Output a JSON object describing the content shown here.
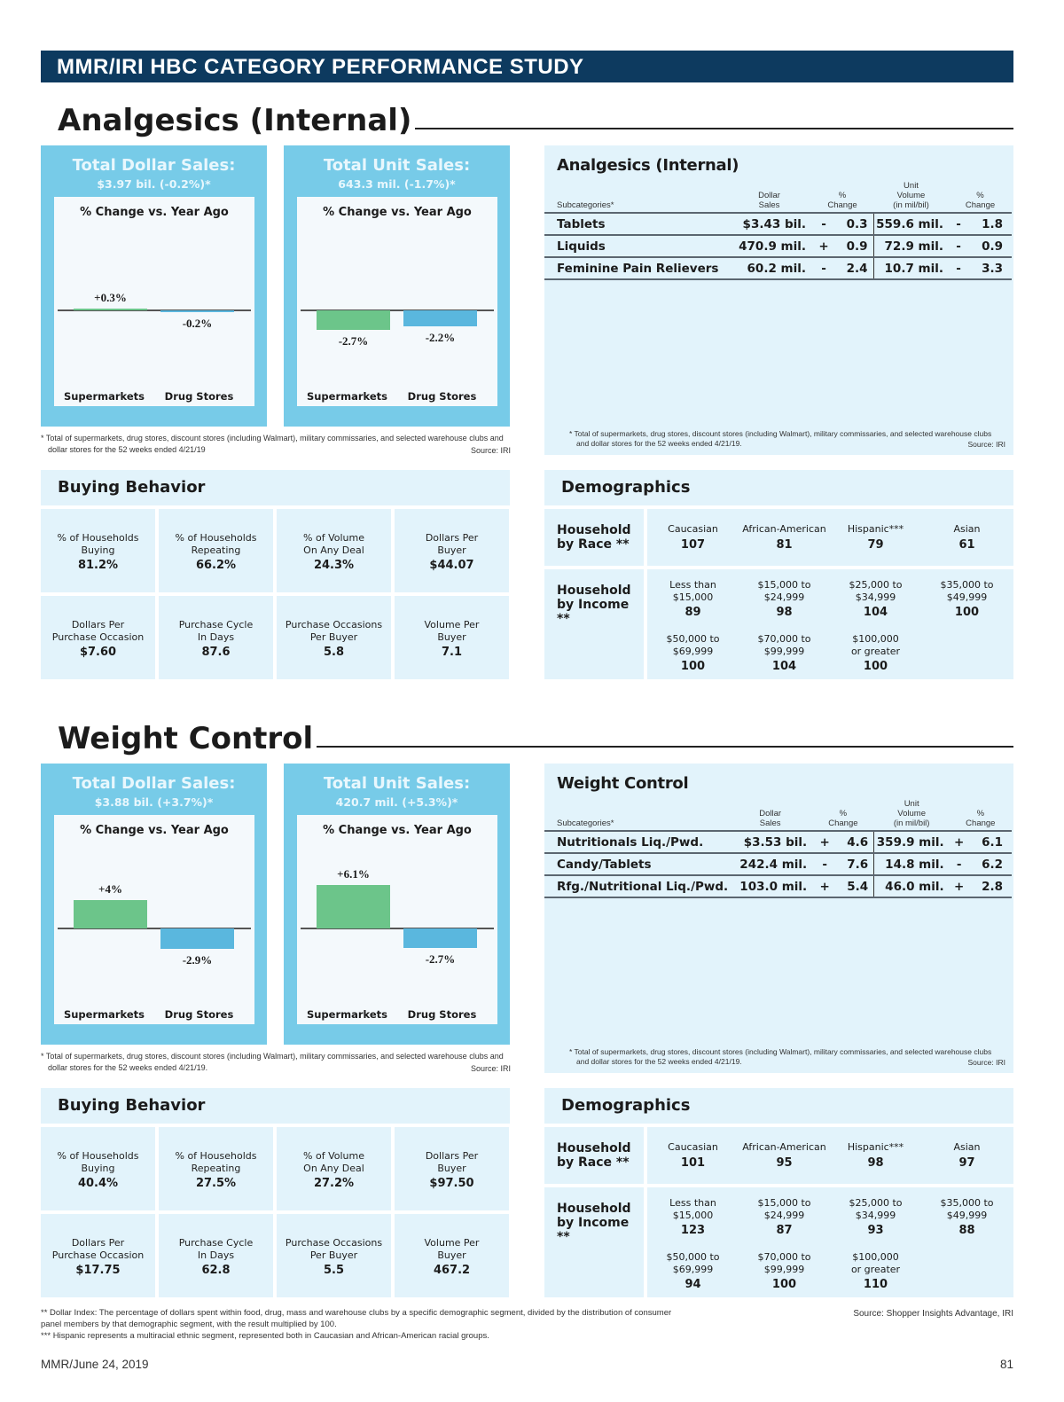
{
  "header": {
    "title": "MMR/IRI HBC CATEGORY PERFORMANCE STUDY"
  },
  "colors": {
    "header": "#0d3a5f",
    "sales_box": "#77cbe8",
    "panel": "#e2f3fb",
    "supermarkets_bar": "#6cc58a",
    "drug_bar": "#5ab7de"
  },
  "sections": [
    {
      "title": "Analgesics (Internal)",
      "dollar": {
        "title": "Total Dollar Sales:",
        "value": "$3.97 bil. (-0.2%)*",
        "chart_title": "% Change vs. Year Ago",
        "bars": [
          {
            "category": "Supermarkets",
            "value": 0.3,
            "label": "+0.3%"
          },
          {
            "category": "Drug Stores",
            "value": -0.2,
            "label": "-0.2%"
          }
        ]
      },
      "unit": {
        "title": "Total Unit Sales:",
        "value": "643.3 mil. (-1.7%)*",
        "chart_title": "% Change vs. Year Ago",
        "bars": [
          {
            "category": "Supermarkets",
            "value": -2.7,
            "label": "-2.7%"
          },
          {
            "category": "Drug Stores",
            "value": -2.2,
            "label": "-2.2%"
          }
        ]
      },
      "footnote": "* Total of supermarkets, drug stores, discount stores (including Walmart), military commissaries, and selected warehouse clubs and dollar stores for the 52 weeks ended 4/21/19",
      "source": "Source: IRI",
      "table": {
        "title": "Analgesics (Internal)",
        "headers": [
          "Subcategories*",
          "Dollar\nSales",
          "%\nChange",
          "Unit\nVolume\n(in mil/bil)",
          "%\nChange"
        ],
        "rows": [
          {
            "name": "Tablets",
            "dollar": "$3.43 bil.",
            "s1": "-",
            "c1": "0.3",
            "unit": "559.6 mil.",
            "s2": "-",
            "c2": "1.8"
          },
          {
            "name": "Liquids",
            "dollar": "470.9 mil.",
            "s1": "+",
            "c1": "0.9",
            "unit": "72.9 mil.",
            "s2": "-",
            "c2": "0.9"
          },
          {
            "name": "Feminine Pain Relievers",
            "dollar": "60.2 mil.",
            "s1": "-",
            "c1": "2.4",
            "unit": "10.7 mil.",
            "s2": "-",
            "c2": "3.3"
          }
        ],
        "footnote": "* Total of supermarkets, drug stores, discount stores (including Walmart), military commissaries, and selected warehouse clubs and dollar stores for the 52 weeks ended 4/21/19.",
        "source": "Source: IRI"
      },
      "buying": {
        "title": "Buying Behavior",
        "metrics": [
          {
            "label": "% of Households\nBuying",
            "value": "81.2%"
          },
          {
            "label": "% of Households\nRepeating",
            "value": "66.2%"
          },
          {
            "label": "% of Volume\nOn Any Deal",
            "value": "24.3%"
          },
          {
            "label": "Dollars Per\nBuyer",
            "value": "$44.07"
          },
          {
            "label": "Dollars Per\nPurchase Occasion",
            "value": "$7.60"
          },
          {
            "label": "Purchase Cycle\nIn Days",
            "value": "87.6"
          },
          {
            "label": "Purchase Occasions\nPer Buyer",
            "value": "5.8"
          },
          {
            "label": "Volume Per\nBuyer",
            "value": "7.1"
          }
        ]
      },
      "demographics": {
        "title": "Demographics",
        "race_label": "Household\nby Race  **",
        "race": [
          {
            "label": "Caucasian",
            "value": "107"
          },
          {
            "label": "African-American",
            "value": "81"
          },
          {
            "label": "Hispanic***",
            "value": "79"
          },
          {
            "label": "Asian",
            "value": "61"
          }
        ],
        "income_label": "Household\nby Income  **",
        "income": [
          {
            "label": "Less than\n$15,000",
            "value": "89"
          },
          {
            "label": "$15,000 to\n$24,999",
            "value": "98"
          },
          {
            "label": "$25,000 to\n$34,999",
            "value": "104"
          },
          {
            "label": "$35,000 to\n$49,999",
            "value": "100"
          },
          {
            "label": "$50,000 to\n$69,999",
            "value": "100"
          },
          {
            "label": "$70,000 to\n$99,999",
            "value": "104"
          },
          {
            "label": "$100,000\nor greater",
            "value": "100"
          }
        ]
      }
    },
    {
      "title": "Weight Control",
      "dollar": {
        "title": "Total Dollar Sales:",
        "value": "$3.88 bil. (+3.7%)*",
        "chart_title": "% Change vs. Year Ago",
        "bars": [
          {
            "category": "Supermarkets",
            "value": 4.0,
            "label": "+4%"
          },
          {
            "category": "Drug Stores",
            "value": -2.9,
            "label": "-2.9%"
          }
        ]
      },
      "unit": {
        "title": "Total Unit Sales:",
        "value": "420.7 mil. (+5.3%)*",
        "chart_title": "% Change vs. Year Ago",
        "bars": [
          {
            "category": "Supermarkets",
            "value": 6.1,
            "label": "+6.1%"
          },
          {
            "category": "Drug Stores",
            "value": -2.7,
            "label": "-2.7%"
          }
        ]
      },
      "footnote": "* Total of supermarkets, drug stores, discount stores (including Walmart), military commissaries, and selected warehouse clubs and dollar stores for the 52 weeks ended 4/21/19.",
      "source": "Source: IRI",
      "table": {
        "title": "Weight Control",
        "headers": [
          "Subcategories*",
          "Dollar\nSales",
          "%\nChange",
          "Unit\nVolume\n(in mil/bil)",
          "%\nChange"
        ],
        "rows": [
          {
            "name": "Nutritionals Liq./Pwd.",
            "dollar": "$3.53 bil.",
            "s1": "+",
            "c1": "4.6",
            "unit": "359.9 mil.",
            "s2": "+",
            "c2": "6.1"
          },
          {
            "name": "Candy/Tablets",
            "dollar": "242.4 mil.",
            "s1": "-",
            "c1": "7.6",
            "unit": "14.8 mil.",
            "s2": "-",
            "c2": "6.2"
          },
          {
            "name": "Rfg./Nutritional Liq./Pwd.",
            "dollar": "103.0 mil.",
            "s1": "+",
            "c1": "5.4",
            "unit": "46.0 mil.",
            "s2": "+",
            "c2": "2.8"
          }
        ],
        "footnote": "* Total of supermarkets, drug stores, discount stores (including Walmart), military commissaries, and selected warehouse clubs and dollar stores for the 52 weeks ended 4/21/19.",
        "source": "Source: IRI"
      },
      "buying": {
        "title": "Buying Behavior",
        "metrics": [
          {
            "label": "% of Households\nBuying",
            "value": "40.4%"
          },
          {
            "label": "% of Households\nRepeating",
            "value": "27.5%"
          },
          {
            "label": "% of Volume\nOn Any Deal",
            "value": "27.2%"
          },
          {
            "label": "Dollars Per\nBuyer",
            "value": "$97.50"
          },
          {
            "label": "Dollars Per\nPurchase Occasion",
            "value": "$17.75"
          },
          {
            "label": "Purchase Cycle\nIn Days",
            "value": "62.8"
          },
          {
            "label": "Purchase Occasions\nPer Buyer",
            "value": "5.5"
          },
          {
            "label": "Volume Per\nBuyer",
            "value": "467.2"
          }
        ]
      },
      "demographics": {
        "title": "Demographics",
        "race_label": "Household\nby Race  **",
        "race": [
          {
            "label": "Caucasian",
            "value": "101"
          },
          {
            "label": "African-American",
            "value": "95"
          },
          {
            "label": "Hispanic***",
            "value": "98"
          },
          {
            "label": "Asian",
            "value": "97"
          }
        ],
        "income_label": "Household\nby Income  **",
        "income": [
          {
            "label": "Less than\n$15,000",
            "value": "123"
          },
          {
            "label": "$15,000 to\n$24,999",
            "value": "87"
          },
          {
            "label": "$25,000 to\n$34,999",
            "value": "93"
          },
          {
            "label": "$35,000 to\n$49,999",
            "value": "88"
          },
          {
            "label": "$50,000 to\n$69,999",
            "value": "94"
          },
          {
            "label": "$70,000 to\n$99,999",
            "value": "100"
          },
          {
            "label": "$100,000\nor greater",
            "value": "110"
          }
        ]
      }
    }
  ],
  "footer": {
    "note1": "** Dollar Index: The percentage of dollars spent within food, drug, mass and warehouse clubs by a specific demographic segment, divided by the distribution of consumer panel members by that demographic segment, with the result multiplied by 100.",
    "note2": "*** Hispanic represents a multiracial ethnic segment, represented both in Caucasian and African-American racial groups.",
    "source": "Source: Shopper Insights Advantage, IRI",
    "publication": "MMR/June 24, 2019",
    "page": "81"
  }
}
